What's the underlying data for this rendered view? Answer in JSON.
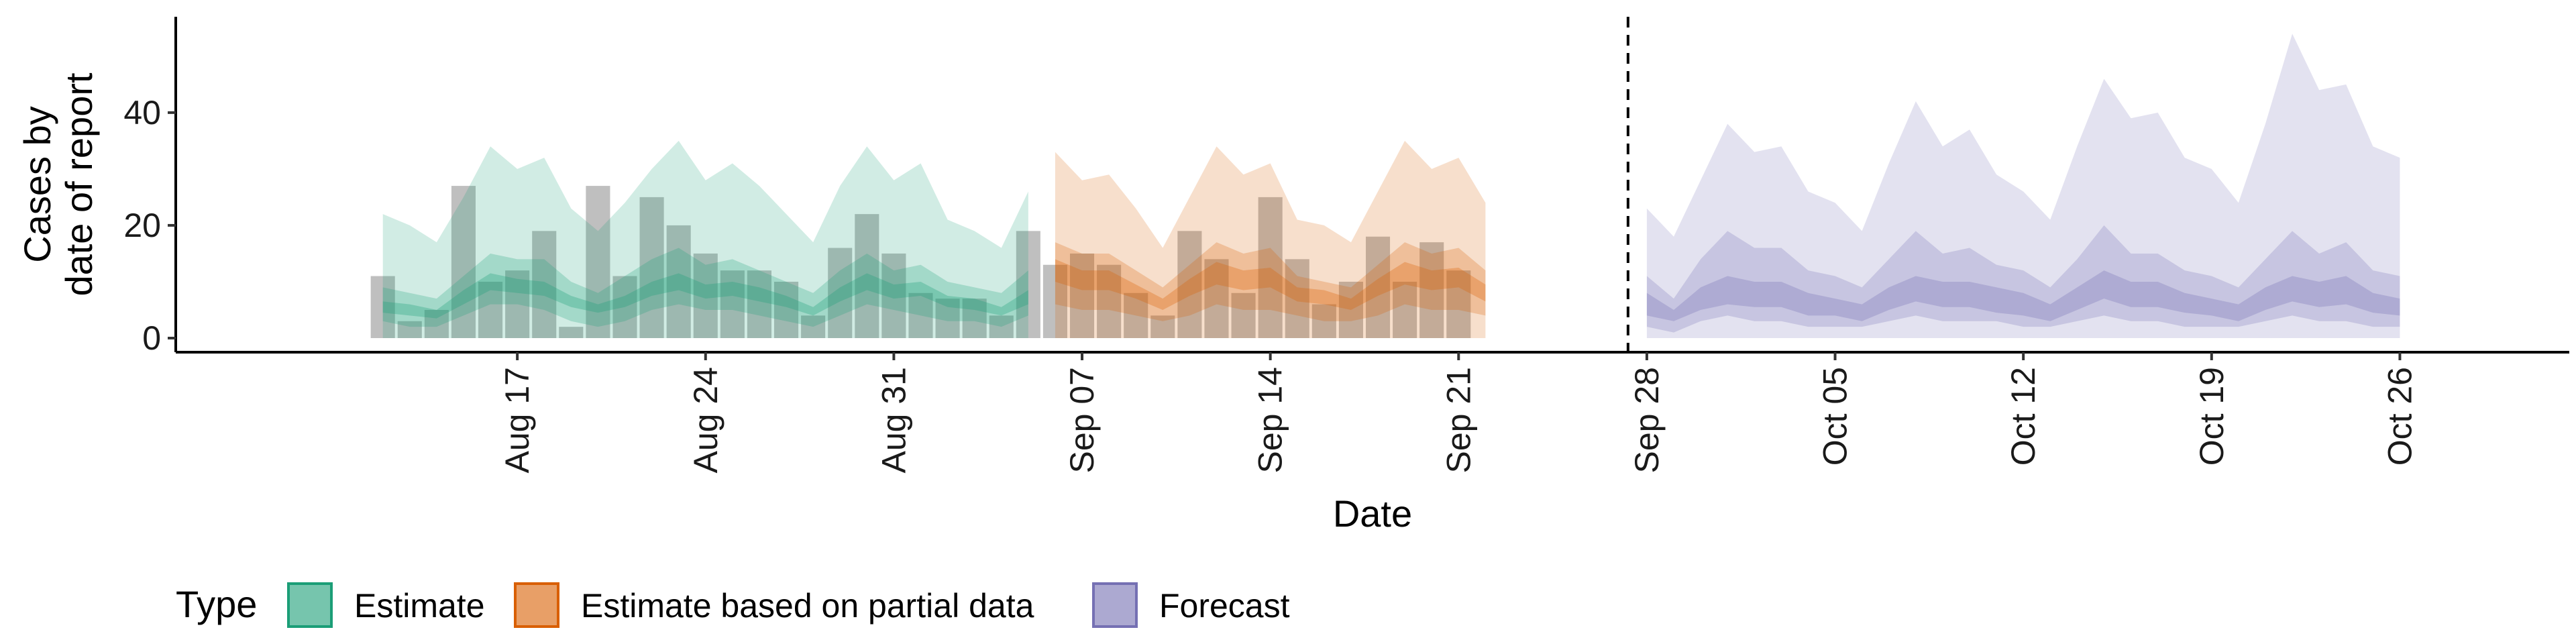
{
  "chart_data": {
    "type": "area",
    "xlabel": "Date",
    "ylabel_lines": [
      "Cases by",
      "date of report"
    ],
    "y_ticks": [
      0,
      20,
      40
    ],
    "ylim": [
      -2.5,
      57
    ],
    "x_start_date": "2020-08-12",
    "xlim_days": [
      -7.7,
      81.3
    ],
    "x_ticks": [
      {
        "day": 5,
        "label": "Aug 17"
      },
      {
        "day": 12,
        "label": "Aug 24"
      },
      {
        "day": 19,
        "label": "Aug 31"
      },
      {
        "day": 26,
        "label": "Sep 07"
      },
      {
        "day": 33,
        "label": "Sep 14"
      },
      {
        "day": 40,
        "label": "Sep 21"
      },
      {
        "day": 47,
        "label": "Sep 28"
      },
      {
        "day": 54,
        "label": "Oct 05"
      },
      {
        "day": 61,
        "label": "Oct 12"
      },
      {
        "day": 68,
        "label": "Oct 19"
      },
      {
        "day": 75,
        "label": "Oct 26"
      }
    ],
    "forecast_line_day": 46.3,
    "legend": {
      "title": "Type",
      "position": "bottom",
      "entries": [
        {
          "label": "Estimate",
          "color": "#1b9e77"
        },
        {
          "label": "Estimate based on partial data",
          "color": "#d95f02"
        },
        {
          "label": "Forecast",
          "color": "#7570b3"
        }
      ]
    },
    "reported_cases": {
      "start_day": 0,
      "values": [
        11,
        3,
        5,
        27,
        10,
        12,
        19,
        2,
        27,
        11,
        25,
        20,
        15,
        12,
        12,
        10,
        4,
        16,
        22,
        15,
        8,
        7,
        7,
        4,
        19,
        13,
        15,
        13,
        8,
        4,
        19,
        14,
        8,
        25,
        14,
        6,
        10,
        18,
        10,
        17,
        12
      ]
    },
    "series": [
      {
        "name": "Estimate",
        "color": "#1b9e77",
        "start_day": 0,
        "lower_90": [
          0,
          0,
          0,
          0,
          0,
          0,
          0,
          0,
          0,
          0,
          0,
          0,
          0,
          0,
          0,
          0,
          0,
          0,
          0,
          0,
          0,
          0,
          0,
          0,
          0
        ],
        "upper_90": [
          22,
          20,
          17,
          25,
          34,
          30,
          32,
          23,
          19,
          24,
          30,
          35,
          28,
          31,
          27,
          22,
          17,
          27,
          34,
          28,
          31,
          21,
          19,
          16,
          26
        ],
        "lower_50": [
          3,
          2,
          2,
          4,
          6,
          6,
          5,
          3,
          2,
          3,
          5,
          6,
          5,
          5,
          4,
          3,
          2,
          4,
          6,
          5,
          4,
          3,
          3,
          2,
          4
        ],
        "upper_50": [
          9,
          8,
          7,
          11,
          15,
          14,
          14,
          10,
          8,
          11,
          14,
          16,
          13,
          14,
          12,
          10,
          8,
          12,
          15,
          12,
          13,
          10,
          9,
          8,
          12
        ],
        "lower_20": [
          4.5,
          4,
          3.5,
          6,
          8.5,
          8,
          7.5,
          5.5,
          4.5,
          5.5,
          7.5,
          8.5,
          7,
          7.5,
          6.5,
          5.5,
          4,
          6.5,
          8.5,
          7,
          7.5,
          5.5,
          5,
          4,
          6
        ],
        "upper_20": [
          6.5,
          6,
          5,
          8.5,
          11.5,
          10.5,
          10,
          7.5,
          6,
          7.5,
          10,
          11.5,
          9.5,
          10,
          9,
          7.5,
          5.5,
          9,
          11.5,
          9.5,
          10,
          7.5,
          7,
          5.5,
          8.5
        ]
      },
      {
        "name": "Estimate based on partial data",
        "color": "#d95f02",
        "start_day": 25,
        "lower_90": [
          0,
          0,
          0,
          0,
          0,
          0,
          0,
          0,
          0,
          0,
          0,
          0,
          0,
          0,
          0,
          0,
          0
        ],
        "upper_90": [
          33,
          28,
          29,
          23,
          16,
          25,
          34,
          29,
          31,
          21,
          20,
          17,
          26,
          35,
          30,
          32,
          24
        ],
        "lower_50": [
          6,
          5,
          5,
          4,
          3,
          4,
          6,
          5,
          5,
          4,
          3,
          3,
          4,
          6,
          5,
          5,
          4
        ],
        "upper_50": [
          17,
          15,
          15,
          12,
          9,
          13,
          17,
          15,
          16,
          11,
          10,
          9,
          13,
          17,
          15,
          16,
          12
        ],
        "lower_20": [
          10,
          8.5,
          8.5,
          7,
          5,
          7.5,
          9.5,
          8.5,
          9,
          6.5,
          6,
          5,
          7.5,
          9.5,
          8.5,
          9,
          6.5
        ],
        "upper_20": [
          14,
          12,
          12,
          9.5,
          7,
          10.5,
          13.5,
          12,
          12.5,
          9,
          8.5,
          7,
          10.5,
          13.5,
          12,
          12.5,
          9.5
        ]
      },
      {
        "name": "Forecast",
        "color": "#7570b3",
        "start_day": 47,
        "lower_90": [
          0,
          0,
          0,
          0,
          0,
          0,
          0,
          0,
          0,
          0,
          0,
          0,
          0,
          0,
          0,
          0,
          0,
          0,
          0,
          0,
          0,
          0,
          0,
          0,
          0,
          0,
          0,
          0,
          0
        ],
        "upper_90": [
          23,
          18,
          28,
          38,
          33,
          34,
          26,
          24,
          19,
          31,
          42,
          34,
          37,
          29,
          26,
          21,
          34,
          46,
          39,
          40,
          32,
          30,
          24,
          38,
          54,
          44,
          45,
          34,
          32
        ],
        "lower_50": [
          2,
          1,
          3,
          4,
          3,
          3,
          2,
          2,
          2,
          3,
          4,
          3,
          3,
          3,
          2,
          2,
          3,
          4,
          3,
          3,
          2,
          2,
          2,
          3,
          4,
          3,
          3,
          2,
          2
        ],
        "upper_50": [
          11,
          7,
          14,
          19,
          16,
          16,
          12,
          11,
          9,
          14,
          19,
          15,
          16,
          13,
          12,
          9,
          14,
          20,
          15,
          15,
          12,
          11,
          9,
          14,
          19,
          15,
          17,
          12,
          11
        ],
        "lower_20": [
          4,
          3,
          5,
          6,
          5.5,
          5.5,
          4,
          4,
          3,
          5,
          6.5,
          5.5,
          5.5,
          4.5,
          4,
          3,
          5,
          7,
          5.5,
          5.5,
          4.5,
          4,
          3,
          5,
          6.5,
          5.5,
          6,
          4.5,
          4
        ],
        "upper_20": [
          8,
          5,
          9,
          11,
          10,
          10,
          8,
          7,
          6,
          9,
          11,
          10,
          10,
          9,
          8,
          6,
          9,
          12,
          10,
          10,
          8,
          7,
          6,
          9,
          11,
          10,
          11,
          8,
          7
        ]
      }
    ]
  }
}
